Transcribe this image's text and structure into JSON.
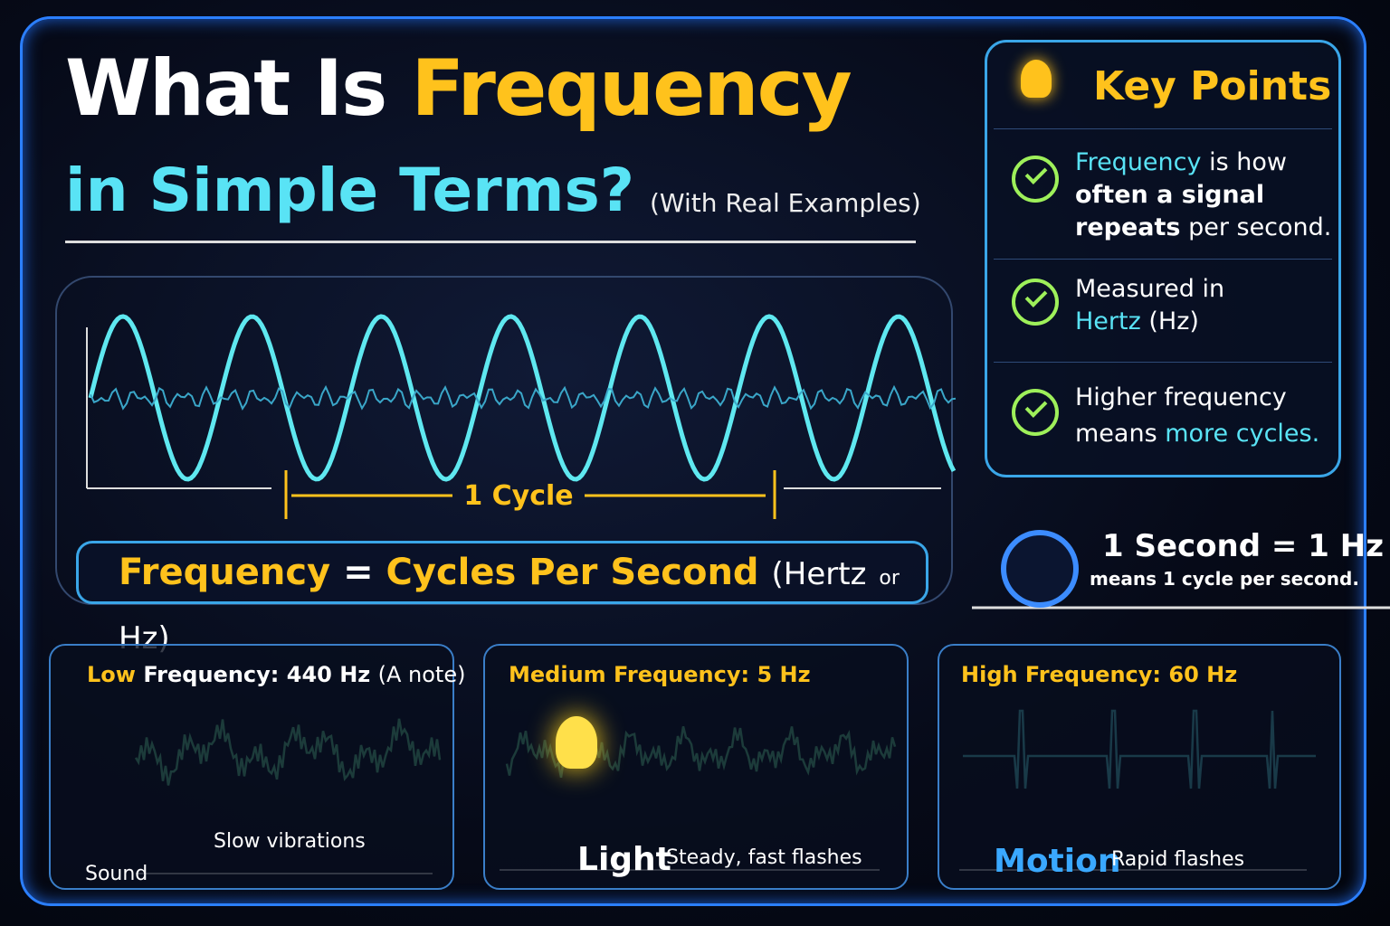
{
  "header": {
    "title_start": "What Is",
    "title_highlight": "Frequency",
    "subtitle": "in Simple Terms?",
    "note": "(With Real Examples)"
  },
  "key_points": {
    "heading": "Key Points",
    "items": [
      [
        "Frequency",
        "is how",
        "often a signal",
        "repeats",
        "per second."
      ],
      [
        "Measured in",
        "Hertz",
        "(Hz)"
      ],
      [
        "Higher frequency",
        "means",
        "more cycles."
      ]
    ]
  },
  "wave": {
    "cycle_label": "1 Cycle"
  },
  "formula": {
    "left": "Frequency",
    "equals": "=",
    "right": "Cycles Per Second",
    "paren_start": "(Hertz",
    "or": "or",
    "paren_end": "Hz)"
  },
  "second": {
    "title": "1 Second = 1 Hz",
    "caption": "means 1 cycle per second."
  },
  "panels": [
    {
      "label_highlight": "Low",
      "label": "Frequency:",
      "value": "440 Hz",
      "note": "(A note)",
      "caption": "Slow vibrations",
      "category": "Sound"
    },
    {
      "label": "Medium Frequency:",
      "value": "5 Hz",
      "category": "Light",
      "caption": "Steady, fast flashes"
    },
    {
      "label": "High Frequency:",
      "value": "60 Hz",
      "category": "Motion",
      "caption": "Rapid flashes"
    }
  ]
}
